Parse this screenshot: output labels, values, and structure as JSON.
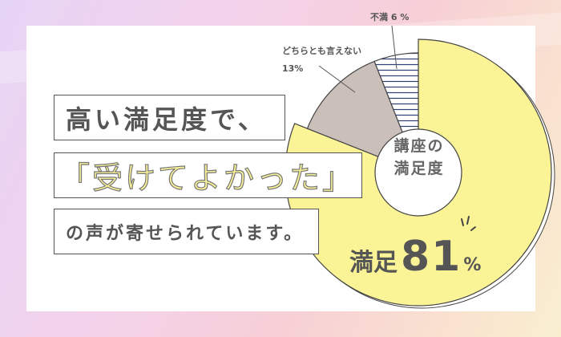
{
  "headline": {
    "line1": "高い満足度で、",
    "line2": "「受けてよかった」",
    "line3": "の声が寄せられています。"
  },
  "chart_data": {
    "type": "pie",
    "title": "講座の満足度",
    "categories": [
      "満足",
      "どちらとも言えない",
      "不満"
    ],
    "values": [
      81,
      13,
      6
    ],
    "labels": [
      "満足81%",
      "どちらとも言えない 13%",
      "不満 6 %"
    ],
    "colors": [
      "#fbf497",
      "#cbbfba",
      "#ffffff"
    ],
    "patterns": [
      "solid",
      "solid",
      "horizontal-stripes"
    ],
    "stripe_color": "#2f3f73",
    "start": "12 o'clock",
    "direction": "clockwise",
    "donut": true
  },
  "slice_labels": {
    "dissatisfied_name": "不満",
    "dissatisfied_value": "6 %",
    "neutral_name": "どちらとも言えない",
    "neutral_value": "13%",
    "satisfied_name": "満足",
    "satisfied_value": "81",
    "satisfied_unit": "%"
  },
  "center_label": {
    "line1": "講座の",
    "line2": "満足度"
  }
}
